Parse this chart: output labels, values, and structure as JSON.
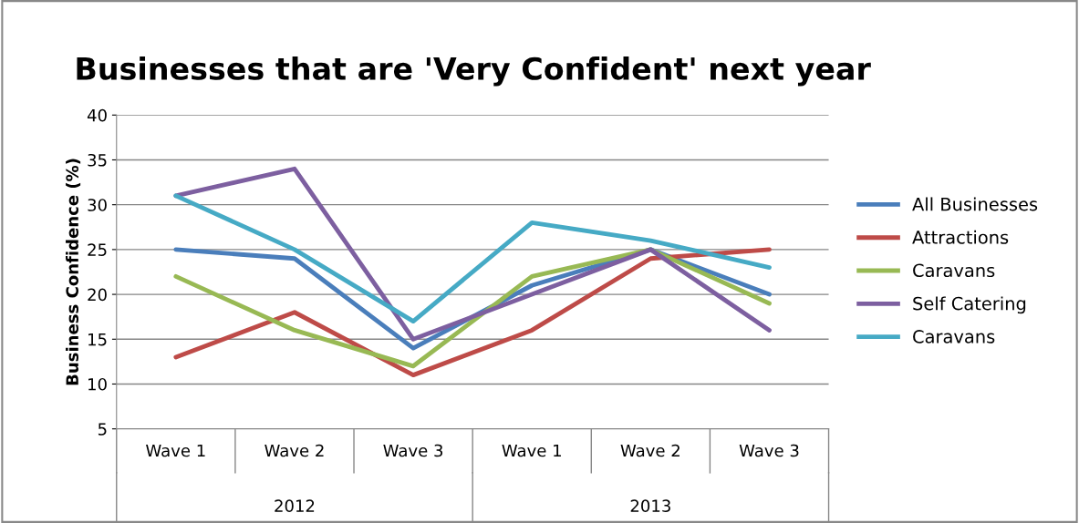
{
  "chart_data": {
    "type": "line",
    "title": "Businesses that are 'Very Confident' next year",
    "ylabel": "Business Confidence (%)",
    "categories": [
      "Wave 1",
      "Wave 2",
      "Wave 3",
      "Wave 1",
      "Wave 2",
      "Wave 3"
    ],
    "annotations": [
      "2012",
      "2013"
    ],
    "series": [
      {
        "name": "All Businesses",
        "color": "#4a7ebb",
        "values": [
          25,
          24,
          14,
          21,
          25,
          20
        ]
      },
      {
        "name": "Attractions",
        "color": "#be4b48",
        "values": [
          13,
          18,
          11,
          16,
          24,
          25
        ]
      },
      {
        "name": "Caravans",
        "color": "#98b954",
        "values": [
          22,
          16,
          12,
          22,
          25,
          19
        ]
      },
      {
        "name": "Self Catering",
        "color": "#7d5fa0",
        "values": [
          31,
          34,
          15,
          20,
          25,
          16
        ]
      },
      {
        "name": "Caravans",
        "color": "#46aac5",
        "values": [
          31,
          25,
          17,
          28,
          26,
          23
        ]
      }
    ],
    "ylim": [
      5,
      40
    ],
    "yticks": [
      5,
      10,
      15,
      20,
      25,
      30,
      35,
      40
    ],
    "grid": "y",
    "legend": "right",
    "marker": "none",
    "line_style": "solid"
  }
}
